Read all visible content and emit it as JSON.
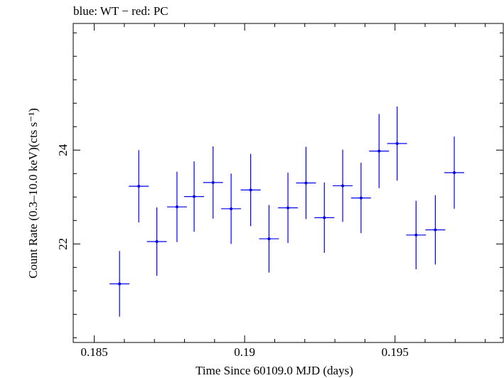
{
  "chart_data": {
    "type": "scatter",
    "title": "blue: WT − red: PC",
    "xlabel": "Time Since 60109.0 MJD (days)",
    "ylabel": "Count Rate (0.3–10.0 keV)(cts s⁻¹)",
    "xlim": [
      0.1843,
      0.1986
    ],
    "ylim": [
      19.9,
      26.7
    ],
    "x_ticks": [
      0.185,
      0.19,
      0.195
    ],
    "x_tick_labels": [
      "0.185",
      "0.19",
      "0.195"
    ],
    "y_ticks": [
      22,
      24
    ],
    "y_tick_labels": [
      "22",
      "24"
    ],
    "grid": false,
    "series": [
      {
        "color": "#0000ee",
        "points": [
          {
            "x": 0.18584,
            "xerr": 0.00033,
            "y": 21.15,
            "yerr": 0.7
          },
          {
            "x": 0.18648,
            "xerr": 0.00033,
            "y": 23.23,
            "yerr": 0.77
          },
          {
            "x": 0.18708,
            "xerr": 0.00033,
            "y": 22.05,
            "yerr": 0.73
          },
          {
            "x": 0.18775,
            "xerr": 0.00033,
            "y": 22.79,
            "yerr": 0.75
          },
          {
            "x": 0.18832,
            "xerr": 0.00033,
            "y": 23.01,
            "yerr": 0.75
          },
          {
            "x": 0.18895,
            "xerr": 0.00033,
            "y": 23.31,
            "yerr": 0.77
          },
          {
            "x": 0.18955,
            "xerr": 0.00033,
            "y": 22.75,
            "yerr": 0.75
          },
          {
            "x": 0.1902,
            "xerr": 0.00033,
            "y": 23.15,
            "yerr": 0.77
          },
          {
            "x": 0.19081,
            "xerr": 0.00033,
            "y": 22.11,
            "yerr": 0.72
          },
          {
            "x": 0.19144,
            "xerr": 0.00033,
            "y": 22.77,
            "yerr": 0.75
          },
          {
            "x": 0.19204,
            "xerr": 0.00033,
            "y": 23.3,
            "yerr": 0.77
          },
          {
            "x": 0.19265,
            "xerr": 0.00033,
            "y": 22.56,
            "yerr": 0.75
          },
          {
            "x": 0.19326,
            "xerr": 0.00033,
            "y": 23.24,
            "yerr": 0.77
          },
          {
            "x": 0.19387,
            "xerr": 0.00033,
            "y": 22.98,
            "yerr": 0.75
          },
          {
            "x": 0.19447,
            "xerr": 0.00033,
            "y": 23.98,
            "yerr": 0.79
          },
          {
            "x": 0.19507,
            "xerr": 0.00033,
            "y": 24.14,
            "yerr": 0.79
          },
          {
            "x": 0.1957,
            "xerr": 0.00033,
            "y": 22.19,
            "yerr": 0.73
          },
          {
            "x": 0.19634,
            "xerr": 0.00033,
            "y": 22.3,
            "yerr": 0.74
          },
          {
            "x": 0.19697,
            "xerr": 0.00033,
            "y": 23.52,
            "yerr": 0.77
          }
        ]
      }
    ]
  }
}
